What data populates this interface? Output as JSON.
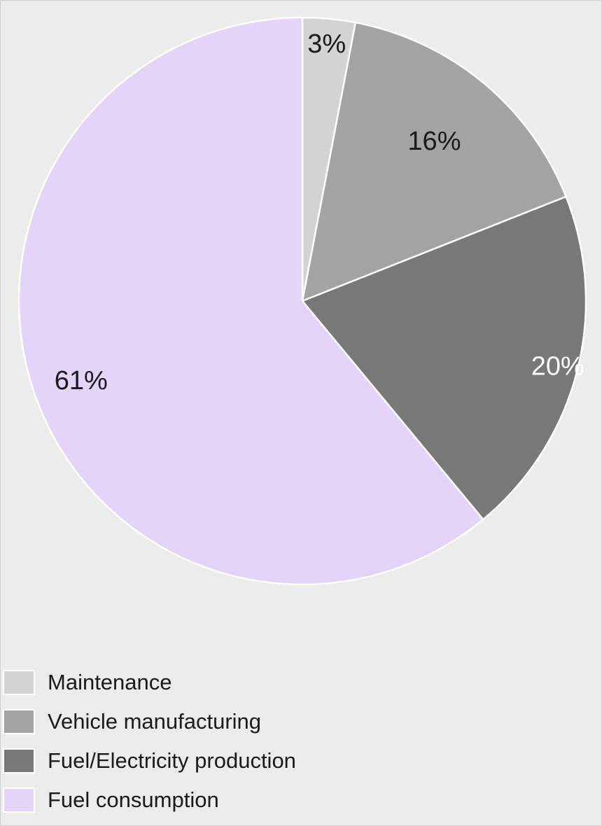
{
  "chart_data": {
    "type": "pie",
    "title": "",
    "categories": [
      "Maintenance",
      "Vehicle manufacturing",
      "Fuel/Electricity production",
      "Fuel consumption"
    ],
    "values": [
      3,
      16,
      20,
      61
    ],
    "labels": [
      "3%",
      "16%",
      "20%",
      "61%"
    ],
    "colors": [
      "#d3d3d3",
      "#a3a3a3",
      "#787878",
      "#e5d4fa"
    ],
    "label_colors": [
      "#1a1a1a",
      "#1a1a1a",
      "#ffffff",
      "#1a1a1a"
    ],
    "start": "12 o'clock",
    "direction": "clockwise",
    "legend_position": "bottom-left"
  }
}
